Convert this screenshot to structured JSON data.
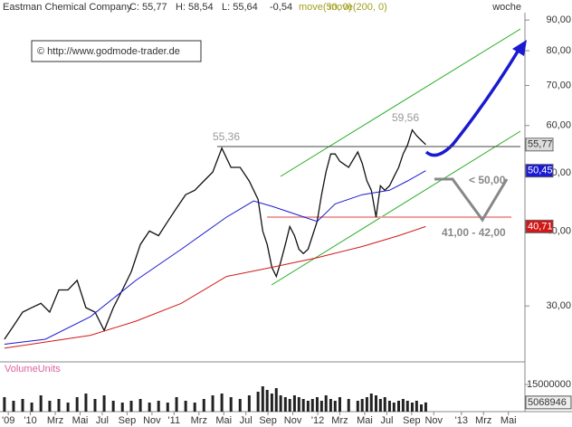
{
  "chart_data": {
    "type": "line",
    "title": "Eastman Chemical Company",
    "quote": [
      "C: 55,77",
      "H: 58,54",
      "L: 55,64",
      "-0,54"
    ],
    "timeframe": "woche",
    "source": "© http://www.godmode-trader.de",
    "log_scale": true,
    "xlim": [
      0,
      190
    ],
    "xticks": [
      {
        "value": 3,
        "label": "'09"
      },
      {
        "value": 11,
        "label": "'10"
      },
      {
        "value": 20,
        "label": "Mrz"
      },
      {
        "value": 29,
        "label": "Mai"
      },
      {
        "value": 37,
        "label": "Jul"
      },
      {
        "value": 46,
        "label": "Sep"
      },
      {
        "value": 55,
        "label": "Nov"
      },
      {
        "value": 63,
        "label": "'11"
      },
      {
        "value": 72,
        "label": "Mrz"
      },
      {
        "value": 81,
        "label": "Mai"
      },
      {
        "value": 89,
        "label": "Jul"
      },
      {
        "value": 97,
        "label": "Sep"
      },
      {
        "value": 106,
        "label": "Nov"
      },
      {
        "value": 115,
        "label": "'12"
      },
      {
        "value": 123,
        "label": "Mrz"
      },
      {
        "value": 132,
        "label": "Mai"
      },
      {
        "value": 140,
        "label": "Jul"
      },
      {
        "value": 149,
        "label": "Sep"
      },
      {
        "value": 157,
        "label": "Nov"
      },
      {
        "value": 167,
        "label": "'13"
      },
      {
        "value": 175,
        "label": "Mrz"
      },
      {
        "value": 184,
        "label": "Mai"
      }
    ],
    "ylim": [
      24.2,
      97.2
    ],
    "yticks": [
      {
        "value": 30,
        "label": "30,00"
      },
      {
        "value": 40,
        "label": "40,00"
      },
      {
        "value": 50,
        "label": "50,00"
      },
      {
        "value": 60,
        "label": "60,00"
      },
      {
        "value": 70,
        "label": "70,00"
      },
      {
        "value": 80,
        "label": "80,00"
      },
      {
        "value": 90,
        "label": "90,00"
      }
    ],
    "series": [
      {
        "color": "#111111",
        "x": [
          1.6,
          4.9,
          8.2,
          11.5,
          14.8,
          18,
          21.3,
          24.6,
          27.9,
          31.1,
          34.4,
          37.7,
          41,
          44.3,
          47.5,
          50.8,
          54.1,
          57.4,
          60.7,
          63.9,
          67.2,
          70.5,
          73.8,
          77,
          80.3,
          83.6,
          86.9,
          90.2,
          93.4,
          95.1,
          96.7,
          98.4,
          100,
          101.6,
          103.3,
          104.9,
          106.6,
          108.2,
          109.8,
          111.5,
          113.1,
          114.8,
          116.4,
          118,
          119.7,
          121.3,
          123,
          126.2,
          129.5,
          131.1,
          132.8,
          134.4,
          136.1,
          137.7,
          139.3,
          141,
          142.6,
          144.3,
          145.9,
          147.5,
          149.2,
          150.8,
          152.5,
          154.1
        ],
        "values": [
          26.4,
          27.8,
          29.3,
          29.8,
          30.3,
          29.3,
          31.9,
          31.9,
          33.1,
          29.8,
          29.3,
          27.3,
          29.8,
          31.9,
          34.2,
          38.0,
          40.0,
          39.3,
          41.5,
          43.7,
          46.0,
          46.8,
          48.5,
          50.2,
          55.0,
          51.1,
          51.1,
          48.5,
          45.2,
          40.0,
          38.0,
          34.8,
          33.6,
          35.5,
          38.0,
          40.7,
          39.3,
          37.3,
          36.7,
          37.3,
          39.3,
          41.5,
          46.0,
          50.2,
          53.8,
          53.8,
          52.3,
          51.1,
          54.2,
          51.9,
          48.5,
          46.8,
          42.2,
          47.6,
          46.8,
          47.6,
          49.3,
          51.1,
          53.8,
          55.7,
          59.0,
          57.7,
          56.7,
          55.77
        ]
      },
      {
        "name": "move(50, 0)",
        "color": "#1a1ad0",
        "x": [
          1.6,
          16.4,
          32.8,
          49.2,
          65.6,
          82,
          91.8,
          98.4,
          108.2,
          114.8,
          121.3,
          131.1,
          141,
          147.5,
          154.1
        ],
        "values": [
          25.9,
          26.4,
          28.8,
          33.1,
          37.3,
          42.2,
          44.9,
          44.0,
          42.5,
          41.5,
          44.4,
          46.0,
          46.8,
          48.5,
          50.45
        ]
      },
      {
        "name": "move(200, 0)",
        "color": "#d01818",
        "x": [
          1.6,
          32.8,
          49.2,
          65.6,
          82,
          98.4,
          114.8,
          131.1,
          144.3,
          154.1
        ],
        "values": [
          25.5,
          26.8,
          28.3,
          30.3,
          33.6,
          34.8,
          36.1,
          37.7,
          39.3,
          40.71
        ]
      }
    ],
    "badges": [
      {
        "value": 55.77,
        "label": "55,77",
        "color": "#dddddd"
      },
      {
        "value": 50.45,
        "label": "50,45",
        "color": "#1a1ad0"
      },
      {
        "value": 40.71,
        "label": "40,71",
        "color": "#d01818"
      }
    ],
    "levels": [
      {
        "value": 55.36,
        "label": "55,36"
      },
      {
        "value": 59.56,
        "label": "59,56"
      }
    ],
    "annotations": [
      "< 50,00",
      "41,00 - 42,00"
    ],
    "volume": {
      "label": "VolumeUnits",
      "ylim": [
        0,
        27500000
      ],
      "yticks": [
        15000000
      ],
      "last_label": "5068946",
      "values": [
        8000000,
        6000000,
        7000000,
        5000000,
        9000000,
        6000000,
        7000000,
        5000000,
        8000000,
        10000000,
        7000000,
        9000000,
        6000000,
        5000000,
        6000000,
        7000000,
        5000000,
        6000000,
        5000000,
        8000000,
        6000000,
        5000000,
        7000000,
        9000000,
        10000000,
        8000000,
        7000000,
        9000000,
        11000000,
        14000000,
        12000000,
        10000000,
        13000000,
        9000000,
        8000000,
        7000000,
        9000000,
        8000000,
        7000000,
        6000000,
        7000000,
        8000000,
        6000000,
        9000000,
        7000000,
        6000000,
        8000000,
        7000000,
        6000000,
        7000000,
        8000000,
        10000000,
        9000000,
        7000000,
        8000000,
        6000000,
        5000000,
        6000000,
        7000000,
        6000000,
        5000000,
        6000000,
        4000000,
        5068946
      ]
    }
  }
}
